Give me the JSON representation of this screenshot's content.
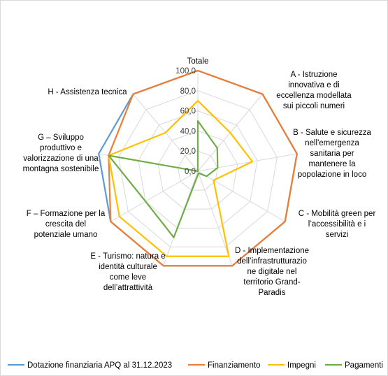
{
  "chart_data": {
    "type": "radar",
    "title": "",
    "categories": [
      "Totale",
      "A - Istruzione innovativa e di eccellenza modellata sui piccoli numeri",
      "B - Salute e sicurezza nell'emergenza sanitaria per mantenere la popolazione in loco",
      "C - Mobilità green per l’accessibilità e i servizi",
      "D - Implementazione dell’infrastrutturazione digitale nel territorio Grand-Paradis",
      "E - Turismo: natura e identità culturale come leve dell’attrattività",
      "F – Formazione per la crescita del potenziale umano",
      "G – Sviluppo produttivo e valorizzazione di una montagna sostenibile",
      "H - Assistenza tecnica"
    ],
    "category_lines": [
      [
        "Totale"
      ],
      [
        "A - Istruzione",
        "innovativa e di",
        "eccellenza modellata",
        "sui piccoli numeri"
      ],
      [
        "B - Salute e sicurezza",
        "nell'emergenza",
        "sanitaria per",
        "mantenere la",
        "popolazione in loco"
      ],
      [
        "C - Mobilità green per",
        "l’accessibilità e i",
        "servizi"
      ],
      [
        "D - Implementazione",
        "dell’infrastrutturazio",
        "ne digitale nel",
        "territorio Grand-",
        "Paradis"
      ],
      [
        "E - Turismo: natura e",
        "identità culturale",
        "come leve",
        "dell’attrattività"
      ],
      [
        "F – Formazione per la",
        "crescita del",
        "potenziale umano"
      ],
      [
        "G – Sviluppo",
        "produttivo e",
        "valorizzazione di una",
        "montagna sostenibile"
      ],
      [
        "H - Assistenza tecnica"
      ]
    ],
    "rlim": [
      0,
      100
    ],
    "ticks": [
      "0,0",
      "20,0",
      "40,0",
      "60,0",
      "80,0",
      "100,0"
    ],
    "tick_values": [
      0,
      20,
      40,
      60,
      80,
      100
    ],
    "grid": true,
    "legend_position": "bottom",
    "series": [
      {
        "name": "Dotazione finanziaria APQ al 31.12.2023",
        "color": "#5b9bd5",
        "values": [
          100,
          100,
          100,
          100,
          100,
          100,
          100,
          100,
          100
        ]
      },
      {
        "name": "Finanziamento",
        "color": "#ed7d31",
        "values": [
          100,
          100,
          100,
          100,
          100,
          100,
          100,
          90,
          100
        ]
      },
      {
        "name": "Impegni",
        "color": "#ffc000",
        "values": [
          70,
          50,
          55,
          18,
          90,
          90,
          90,
          90,
          50
        ]
      },
      {
        "name": "Pagamenti",
        "color": "#70ad47",
        "values": [
          50,
          30,
          20,
          10,
          2,
          70,
          60,
          90,
          0
        ]
      }
    ]
  }
}
